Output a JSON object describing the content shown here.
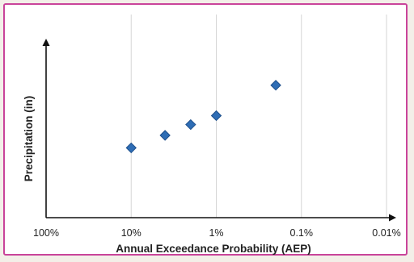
{
  "chart_data": {
    "type": "scatter",
    "title": "",
    "xlabel": "Annual Exceedance Probability (AEP)",
    "ylabel": "Precipitation (in)",
    "x_scale": "log-reversed",
    "x_ticks": [
      {
        "value": 1,
        "label": "100%"
      },
      {
        "value": 0.1,
        "label": "10%"
      },
      {
        "value": 0.01,
        "label": "1%"
      },
      {
        "value": 0.001,
        "label": "0.1%"
      },
      {
        "value": 0.0001,
        "label": "0.01%"
      }
    ],
    "xlim": [
      1,
      0.0001
    ],
    "ylim": [
      0,
      1
    ],
    "y_ticks_shown": false,
    "grid": "vertical",
    "marker": "diamond",
    "marker_color": "#2e6db5",
    "marker_edge_color": "#1d4e8a",
    "points": [
      {
        "x": 0.1,
        "y": 0.39
      },
      {
        "x": 0.04,
        "y": 0.46
      },
      {
        "x": 0.02,
        "y": 0.52
      },
      {
        "x": 0.01,
        "y": 0.57
      },
      {
        "x": 0.002,
        "y": 0.74
      }
    ]
  },
  "colors": {
    "frame_border": "#c9449a",
    "gridline": "#d6d6d6",
    "axis": "#111111",
    "background": "#ffffff"
  }
}
